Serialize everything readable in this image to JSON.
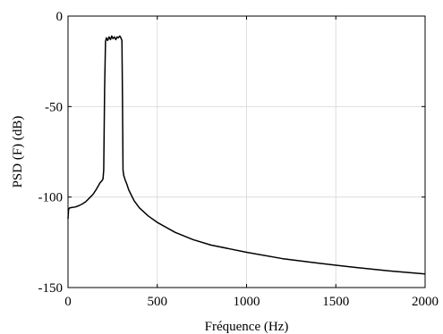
{
  "chart_data": {
    "type": "line",
    "title": "",
    "xlabel": "Fréquence (Hz)",
    "ylabel": "PSD (F) (dB)",
    "xlim": [
      0,
      2000
    ],
    "ylim": [
      -150,
      0
    ],
    "x_ticks": [
      0,
      500,
      1000,
      1500,
      2000
    ],
    "y_ticks": [
      0,
      -50,
      -100,
      -150
    ],
    "x_tick_labels": [
      "0",
      "500",
      "1000",
      "1500",
      "2000"
    ],
    "y_tick_labels": [
      "0",
      "-50",
      "-100",
      "-150"
    ],
    "grid": true,
    "line_color": "#000000",
    "grid_color": "#dddddd",
    "series": [
      {
        "x": [
          0,
          3,
          8,
          20,
          40,
          60,
          80,
          100,
          120,
          140,
          160,
          180,
          190,
          196,
          200,
          205,
          210,
          215,
          222,
          230,
          238,
          245,
          252,
          260,
          268,
          275,
          282,
          290,
          296,
          302,
          305,
          308,
          312,
          320,
          330,
          340,
          350,
          370,
          400,
          450,
          500,
          600,
          700,
          800,
          900,
          1000,
          1200,
          1400,
          1600,
          1800,
          2000
        ],
        "y": [
          -112,
          -107,
          -106,
          -105.8,
          -105.5,
          -104.8,
          -103.8,
          -102.5,
          -100.5,
          -98.5,
          -95.5,
          -92,
          -91,
          -90,
          -85,
          -40,
          -14,
          -12,
          -13.5,
          -11.5,
          -13,
          -11,
          -12.5,
          -11.5,
          -13,
          -11.5,
          -12,
          -11,
          -12,
          -13.5,
          -45,
          -85,
          -88,
          -90.5,
          -93,
          -96,
          -98,
          -102,
          -106,
          -110.5,
          -114,
          -119.5,
          -123.5,
          -126.5,
          -128.5,
          -130.5,
          -134,
          -136.5,
          -138.8,
          -140.8,
          -142.5
        ]
      }
    ]
  }
}
